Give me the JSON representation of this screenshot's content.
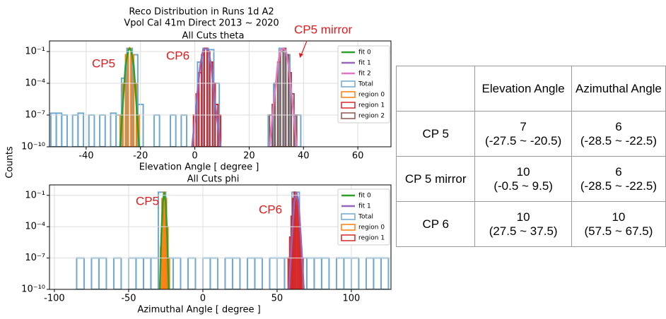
{
  "figure_title": [
    "Reco Distribution in Runs 1d A2",
    "Vpol Cal 41m Direct 2013 ~ 2020"
  ],
  "ylabel": "Counts",
  "chart_data": [
    {
      "type": "histogram",
      "title": "All Cuts theta",
      "xlabel": "Elevation Angle [ degree ]",
      "log_y": true,
      "xlim": [
        -53.5,
        72.2
      ],
      "ylim": [
        1e-10,
        1
      ],
      "xticks": [
        -40,
        -20,
        0,
        20,
        40,
        60
      ],
      "yticks": [
        {
          "value": 1e-10,
          "label": "10⁻¹⁰"
        },
        {
          "value": 1e-07,
          "label": "10⁻⁷"
        },
        {
          "value": 0.0001,
          "label": "10⁻⁴"
        },
        {
          "value": 0.1,
          "label": "10⁻¹"
        }
      ],
      "annotations": [
        "CP5",
        "CP6",
        "CP5 mirror"
      ],
      "series": [
        {
          "name": "fit 0",
          "type": "line",
          "color": "#2ca02c",
          "x": [
            -27.5,
            -26.5,
            -25.5,
            -24.5,
            -24,
            -23.5,
            -22.5,
            -21.5,
            -20.5
          ],
          "values": [
            1e-10,
            1e-06,
            0.005,
            0.13,
            0.2,
            0.13,
            0.005,
            1e-06,
            1e-10
          ]
        },
        {
          "name": "fit 1",
          "type": "line",
          "color": "#9467bd",
          "x": [
            -1,
            0.5,
            2,
            3,
            4,
            5,
            6,
            7.5,
            9.5
          ],
          "values": [
            1e-10,
            1e-06,
            0.005,
            0.13,
            0.2,
            0.13,
            0.005,
            1e-06,
            1e-10
          ]
        },
        {
          "name": "fit 2",
          "type": "line",
          "color": "#e377c2",
          "x": [
            27.5,
            29,
            30.5,
            31.5,
            32.5,
            33.5,
            34.5,
            36,
            37.5
          ],
          "values": [
            1e-10,
            1e-06,
            0.005,
            0.13,
            0.2,
            0.13,
            0.005,
            1e-06,
            1e-10
          ]
        },
        {
          "name": "Total",
          "type": "step",
          "color": "#6fa8d0",
          "bins": [
            -53,
            -51,
            -49,
            -47,
            -45,
            -43,
            -41,
            -39,
            -37,
            -35,
            -33,
            -31,
            -29,
            -27,
            -25,
            -23,
            -21,
            -19,
            -17,
            -15,
            -13,
            -11,
            -9,
            -7,
            -5,
            -3,
            -1,
            1,
            3,
            5,
            7,
            9,
            11,
            13,
            15,
            17,
            19,
            21,
            23,
            25,
            27,
            29,
            31,
            33,
            35,
            37,
            39,
            41,
            43,
            45,
            47,
            49,
            51,
            53,
            55,
            57,
            59,
            61,
            63,
            65,
            67,
            69,
            71
          ],
          "values": [
            1.5e-07,
            1.5e-07,
            1e-07,
            0,
            1e-07,
            1.5e-07,
            0,
            1e-07,
            0,
            1e-07,
            0,
            1.5e-07,
            1e-07,
            0.0003,
            0.2,
            0.05,
            1e-06,
            0,
            0,
            1e-07,
            0,
            0,
            1e-07,
            0,
            1e-07,
            0,
            0,
            0.01,
            0.2,
            0.15,
            0.0001,
            0,
            0,
            0,
            0,
            0,
            0,
            0,
            0,
            0,
            1e-07,
            0.0001,
            0.2,
            0.05,
            1e-07,
            1e-07,
            0,
            0,
            0,
            0,
            0,
            0,
            0,
            0,
            0,
            0,
            0,
            0,
            0,
            0,
            0,
            0
          ]
        },
        {
          "name": "region 0",
          "type": "step",
          "color": "#ff7f0e",
          "bins": [
            -27.5,
            -26.5,
            -25.5,
            -24.5,
            -23.5,
            -22.5,
            -21.5,
            -20.5
          ],
          "values": [
            1e-07,
            0.0001,
            0.05,
            0.2,
            0.05,
            0.0001,
            1e-07
          ]
        },
        {
          "name": "region 1",
          "type": "step",
          "color": "#d62728",
          "bins": [
            -0.5,
            0.5,
            1.5,
            2.5,
            3.5,
            4.5,
            5.5,
            6.5,
            7.5,
            8.5,
            9.5
          ],
          "values": [
            1e-07,
            1e-05,
            0.001,
            0.05,
            0.2,
            0.1,
            0.01,
            0.0001,
            1e-06,
            1e-07
          ]
        },
        {
          "name": "region 2",
          "type": "step",
          "color": "#8c564b",
          "bins": [
            27.5,
            28.5,
            29.5,
            30.5,
            31.5,
            32.5,
            33.5,
            34.5,
            35.5,
            36.5,
            37.5
          ],
          "values": [
            1e-07,
            1e-06,
            0.0001,
            0.01,
            0.1,
            0.2,
            0.05,
            0.001,
            1e-05,
            1e-07
          ]
        }
      ]
    },
    {
      "type": "histogram",
      "title": "All Cuts phi",
      "xlabel": "Azimuthal Angle [ degree ]",
      "log_y": true,
      "xlim": [
        -103.3,
        126.7
      ],
      "ylim": [
        1e-10,
        1
      ],
      "xticks": [
        -100,
        -50,
        0,
        50,
        100
      ],
      "yticks": [
        {
          "value": 1e-10,
          "label": "10⁻¹⁰"
        },
        {
          "value": 1e-07,
          "label": "10⁻⁷"
        },
        {
          "value": 0.0001,
          "label": "10⁻⁴"
        },
        {
          "value": 0.1,
          "label": "10⁻¹"
        }
      ],
      "annotations": [
        "CP5",
        "CP6"
      ],
      "series": [
        {
          "name": "fit 0",
          "type": "line",
          "color": "#2ca02c",
          "x": [
            -29,
            -28,
            -27,
            -26,
            -25,
            -24,
            -23
          ],
          "values": [
            1e-10,
            1e-05,
            0.02,
            0.2,
            0.02,
            1e-05,
            1e-10
          ]
        },
        {
          "name": "fit 1",
          "type": "line",
          "color": "#9467bd",
          "x": [
            58,
            60,
            61.5,
            63,
            64.5,
            66,
            68
          ],
          "values": [
            1e-10,
            1e-05,
            0.02,
            0.2,
            0.02,
            1e-05,
            1e-10
          ]
        },
        {
          "name": "Total",
          "type": "step",
          "color": "#6fa8d0",
          "bins": [
            -100,
            -95,
            -90,
            -85,
            -80,
            -75,
            -70,
            -65,
            -60,
            -55,
            -50,
            -45,
            -40,
            -35,
            -30,
            -25,
            -20,
            -15,
            -10,
            -5,
            0,
            5,
            10,
            15,
            20,
            25,
            30,
            35,
            40,
            45,
            50,
            55,
            60,
            65,
            70,
            75,
            80,
            85,
            90,
            95,
            100,
            105,
            110,
            115,
            120,
            125
          ],
          "values": [
            0,
            0,
            0,
            1e-07,
            0,
            1e-07,
            1e-07,
            0,
            1e-07,
            0,
            1e-07,
            1e-07,
            1e-07,
            1e-07,
            0.2,
            1e-07,
            1e-07,
            0,
            1e-07,
            0,
            1e-07,
            1e-07,
            0,
            1e-07,
            1e-07,
            0,
            1e-07,
            1e-07,
            0,
            1e-07,
            1e-07,
            1e-07,
            0.2,
            1e-07,
            1e-07,
            1e-07,
            1e-07,
            0,
            1e-07,
            1e-07,
            1e-07,
            0,
            1e-07,
            1e-07,
            1e-07
          ]
        },
        {
          "name": "region 0",
          "type": "step",
          "color": "#ff7f0e",
          "bins": [
            -28.5,
            -27.5,
            -26.5,
            -25.5,
            -24.5,
            -23.5,
            -22.5
          ],
          "values": [
            1e-06,
            0.05,
            0.2,
            0.05,
            0.0001,
            1e-07
          ]
        },
        {
          "name": "region 1",
          "type": "step",
          "color": "#d62728",
          "bins": [
            57.5,
            58.5,
            59.5,
            60.5,
            61.5,
            62.5,
            63.5,
            64.5,
            65.5,
            66.5,
            67.5
          ],
          "values": [
            1e-07,
            1e-05,
            0.001,
            0.05,
            0.2,
            0.1,
            0.01,
            0.0001,
            1e-06,
            1e-07
          ]
        }
      ]
    }
  ],
  "table": {
    "header": [
      "Elevation Angle",
      "Azimuthal Angle"
    ],
    "rows": [
      {
        "label": "CP 5",
        "cells": [
          [
            "7",
            "(-27.5 ~ -20.5)"
          ],
          [
            "6",
            "(-28.5 ~ -22.5)"
          ]
        ]
      },
      {
        "label": "CP 5 mirror",
        "cells": [
          [
            "10",
            "(-0.5 ~ 9.5)"
          ],
          [
            "6",
            "(-28.5 ~ -22.5)"
          ]
        ]
      },
      {
        "label": "CP 6",
        "cells": [
          [
            "10",
            "(27.5 ~ 37.5)"
          ],
          [
            "10",
            "(57.5 ~ 67.5)"
          ]
        ]
      }
    ]
  }
}
